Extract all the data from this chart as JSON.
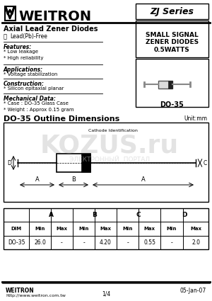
{
  "title": "WEITRON",
  "series_box": "ZJ Series",
  "subtitle": "Axial Lead Zener Diodes",
  "leadfree": "Lead(Pb)-Free",
  "features_title": "Features:",
  "features": [
    "* Low leakage",
    "* High reliability"
  ],
  "applications_title": "Applications:",
  "applications": [
    "* Voltage stabilization"
  ],
  "construction_title": "Construction:",
  "construction": [
    "* Silicon epitaxial planar"
  ],
  "mechanical_title": "Mechanical Data:",
  "mechanical": [
    "* Case : DO-35 Glass Case",
    "* Weight : Approx 0.15 gram"
  ],
  "package_desc": "SMALL SIGNAL\nZENER DIODES\n0.5WATTS",
  "package_name": "DO-35",
  "outline_title": "DO-35 Outline Dimensions",
  "unit_label": "Unit:mm",
  "cathode_label": "Cathode Identification",
  "dim_subheaders": [
    "DIM",
    "Min",
    "Max",
    "Min",
    "Max",
    "Min",
    "Max",
    "Min",
    "Max"
  ],
  "dim_data": [
    "DO-35",
    "26.0",
    "-",
    "-",
    "4.20",
    "-",
    "0.55",
    "-",
    "2.0"
  ],
  "footer_left": "WEITRON",
  "footer_url": "http://www.weitron.com.tw",
  "footer_page": "1/4",
  "footer_date": "05-Jan-07",
  "bg_color": "#ffffff",
  "text_color": "#000000",
  "watermark_text": "KOZUS.ru",
  "watermark_subtext": "ЭЛЕКТРОННЫЙ  ПОРТАЛ"
}
